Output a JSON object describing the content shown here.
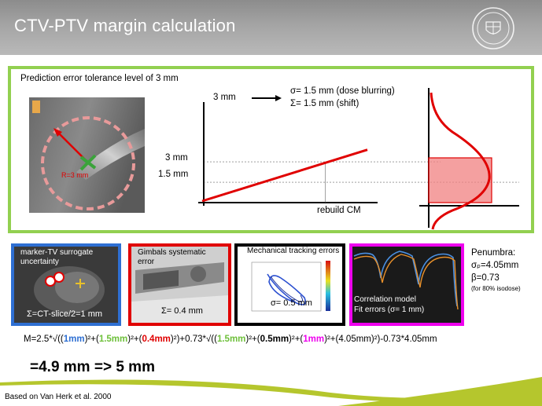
{
  "slide": {
    "title": "CTV-PTV margin calculation",
    "footer": "Based on Van Herk et al. 2000"
  },
  "prediction": {
    "label": "Prediction error tolerance level of 3 mm",
    "radius_label": "R=3 mm",
    "legend_3mm": "3 mm",
    "sigma_text": "σ= 1.5 mm (dose blurring)",
    "Sigma_text": "Σ= 1.5 mm (shift)",
    "y_tick_3": "3 mm",
    "y_tick_15": "1.5 mm",
    "x_label": "rebuild CM"
  },
  "chart_data": {
    "type": "line",
    "title": "",
    "xlabel": "rebuild CM",
    "ylabel": "",
    "yticks": [
      "1.5 mm",
      "3 mm"
    ],
    "series": [
      {
        "x": [
          0,
          1
        ],
        "y": [
          0,
          3.6
        ]
      }
    ],
    "reference_lines": [
      {
        "y": 3
      },
      {
        "y": 1.5
      },
      {
        "x": 0.7
      }
    ]
  },
  "panels": {
    "marker": {
      "title": "marker-TV surrogate uncertainty",
      "value": "Σ=CT-slice/2=1 mm"
    },
    "gimbals": {
      "title": "Gimbals systematic error",
      "value": "Σ= 0.4 mm"
    },
    "tracking": {
      "title": "Mechanical tracking errors",
      "value": "σ= 0.5 mm"
    },
    "correlation": {
      "title": "Correlation model",
      "subtitle": "Fit errors (σ= 1 mm)"
    }
  },
  "penumbra": {
    "title": "Penumbra:",
    "sigma_p": "σₚ=4.05mm",
    "beta": "β=0.73",
    "note": "(for 80% isodose)"
  },
  "formula": {
    "p1": "M=2.5*√((",
    "v1": "1mm",
    "p2": ")²+(",
    "v2": "1.5mm",
    "p3": ")²+(",
    "v3": "0.4mm",
    "p4": ")²)+0.73*√((",
    "v4": "1.5mm",
    "p5": ")²+(",
    "v5": "0.5mm",
    "p6": ")²+(",
    "v6": "1mm",
    "p7": ")²+(4.05mm)²)-0.73*4.05mm"
  },
  "result": "=4.9 mm => 5 mm",
  "colors": {
    "accent_green": "#92d050",
    "blue": "#2e6fd2",
    "red": "#e00000",
    "magenta": "#ee00ee"
  }
}
